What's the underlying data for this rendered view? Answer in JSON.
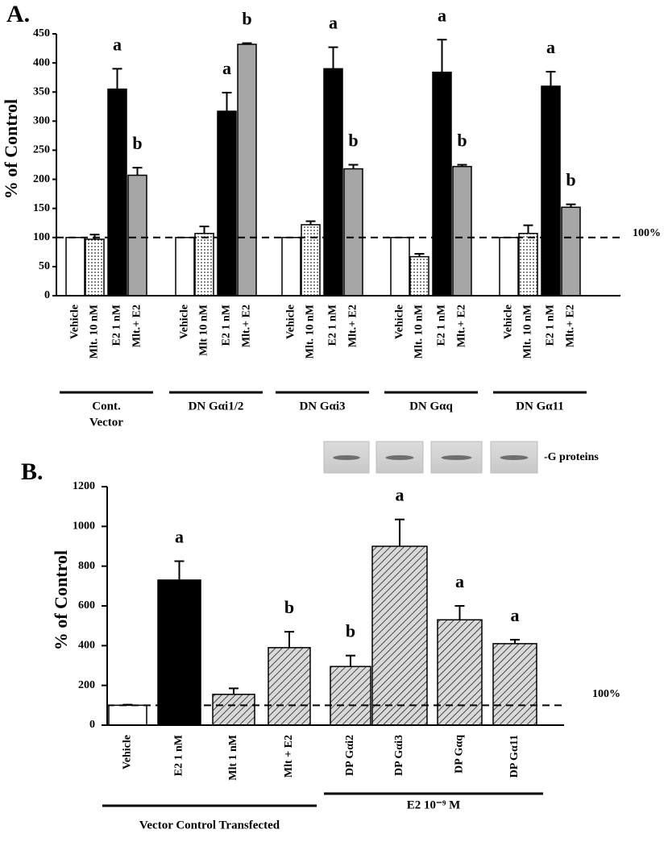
{
  "chart_data": [
    {
      "type": "bar",
      "panel": "A.",
      "y_label": "% of Control",
      "ylim": [
        0,
        450
      ],
      "yticks": [
        0,
        50,
        100,
        150,
        200,
        250,
        300,
        350,
        400,
        450
      ],
      "reference_line": {
        "value": 100,
        "label": "100%"
      },
      "bar_patterns": [
        "open",
        "dotted",
        "solid",
        "gray"
      ],
      "groups": [
        {
          "name": [
            "Cont.",
            "Vector"
          ],
          "categories": [
            "Vehicle",
            "Mlt. 10 nM",
            "E2 1 nM",
            "Mlt.+ E2"
          ],
          "values": [
            100,
            97,
            355,
            207
          ],
          "errors": [
            0,
            8,
            35,
            13
          ],
          "letters": [
            null,
            null,
            "a",
            "b"
          ]
        },
        {
          "name": [
            "DN Gαi1/2"
          ],
          "categories": [
            "Vehicle",
            "Mlt 10 nM",
            "E2 1 nM",
            "Mlt.+ E2"
          ],
          "values": [
            100,
            107,
            317,
            432
          ],
          "errors": [
            0,
            12,
            32,
            2
          ],
          "letters": [
            null,
            null,
            "a",
            "b"
          ]
        },
        {
          "name": [
            "DN Gαi3"
          ],
          "categories": [
            "Vehicle",
            "Mlt. 10 nM",
            "E2 1 nM",
            "Mlt.+ E2"
          ],
          "values": [
            100,
            122,
            390,
            218
          ],
          "errors": [
            0,
            6,
            37,
            7
          ],
          "letters": [
            null,
            null,
            "a",
            "b"
          ]
        },
        {
          "name": [
            "DN Gαq"
          ],
          "categories": [
            "Vehicle",
            "Mlt. 10 nM",
            "E2 1 nM",
            "Mlt.+ E2"
          ],
          "values": [
            100,
            67,
            384,
            222
          ],
          "errors": [
            0,
            5,
            56,
            3
          ],
          "letters": [
            null,
            null,
            "a",
            "b"
          ]
        },
        {
          "name": [
            "DN Gα11"
          ],
          "categories": [
            "Vehicle",
            "Mlt. 10 nM",
            "E2 1 nM",
            "Mlt.+ E2"
          ],
          "values": [
            100,
            107,
            360,
            152
          ],
          "errors": [
            0,
            14,
            25,
            5
          ],
          "letters": [
            null,
            null,
            "a",
            "b"
          ]
        }
      ]
    },
    {
      "type": "bar",
      "panel": "B.",
      "y_label": "% of Control",
      "ylim": [
        0,
        1200
      ],
      "yticks": [
        0,
        200,
        400,
        600,
        800,
        1000,
        1200
      ],
      "reference_line": {
        "value": 100,
        "label": "100%"
      },
      "bar_patterns": [
        "open",
        "solid",
        "hatched",
        "hatched",
        "hatched",
        "hatched",
        "hatched",
        "hatched"
      ],
      "blot": {
        "label": "-G proteins"
      },
      "groups": [
        {
          "name": [
            "Vector Control Transfected"
          ],
          "categories": [
            "Vehicle",
            "E2 1 nM",
            "Mlt 1 nM",
            "Mlt + E2"
          ],
          "values": [
            100,
            730,
            155,
            390
          ],
          "errors": [
            3,
            95,
            30,
            80
          ],
          "letters": [
            null,
            "a",
            null,
            "b"
          ]
        },
        {
          "name": [
            "E2 10⁻⁹ M"
          ],
          "categories": [
            "DP Gαi2",
            "DP Gαi3",
            "DP Gαq",
            "DP Gα11"
          ],
          "values": [
            295,
            900,
            530,
            410
          ],
          "errors": [
            55,
            135,
            70,
            20
          ],
          "letters": [
            "b",
            "a",
            "a",
            "a"
          ]
        }
      ]
    }
  ]
}
